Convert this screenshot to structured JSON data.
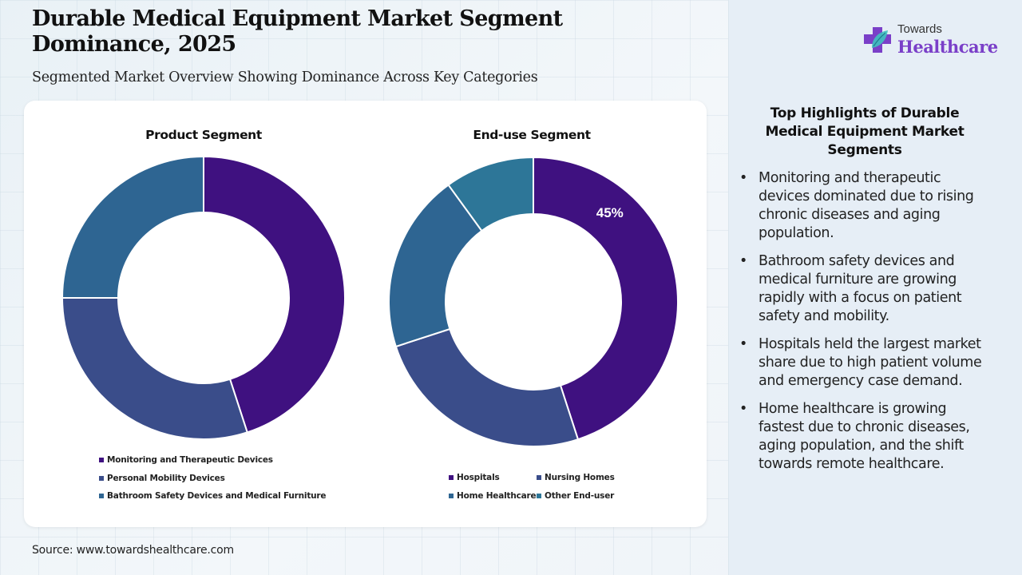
{
  "header": {
    "title": "Durable Medical Equipment Market Segment Dominance, 2025",
    "subtitle": "Segmented Market Overview Showing Dominance Across Key Categories"
  },
  "logo": {
    "top_text": "Towards",
    "main_text": "Healthcare",
    "icon": "medical-cross-leaf-icon",
    "brand_color": "#7a3fc8"
  },
  "chart_data": [
    {
      "type": "pie",
      "title": "Product Segment",
      "donut": true,
      "categories": [
        "Monitoring and Therapeutic Devices",
        "Personal Mobility Devices",
        "Bathroom Safety Devices and Medical Furniture"
      ],
      "values": [
        45,
        30,
        25
      ],
      "colors": [
        "#3f1180",
        "#3a4d8a",
        "#2e6592"
      ],
      "data_labels": [
        "",
        "",
        ""
      ],
      "legend": "bottom"
    },
    {
      "type": "pie",
      "title": "End-use Segment",
      "donut": true,
      "categories": [
        "Hospitals",
        "Nursing Homes",
        "Home Healthcare",
        "Other End-user"
      ],
      "values": [
        45,
        25,
        20,
        10
      ],
      "colors": [
        "#3f1180",
        "#3a4d8a",
        "#2e6592",
        "#2d7698"
      ],
      "data_labels": [
        "45%",
        "",
        "",
        ""
      ],
      "legend": "bottom"
    }
  ],
  "highlights": {
    "title": "Top Highlights of Durable Medical Equipment Market Segments",
    "bullet": "•",
    "items": [
      "Monitoring and therapeutic devices dominated due to rising chronic diseases and aging population.",
      "Bathroom safety devices and medical furniture are growing rapidly with a focus on patient safety and mobility.",
      "Hospitals held the largest market share due to high patient volume and emergency case demand.",
      "Home healthcare is growing fastest due to chronic diseases, aging population, and the shift towards remote healthcare."
    ]
  },
  "source": "Source: www.towardshealthcare.com"
}
